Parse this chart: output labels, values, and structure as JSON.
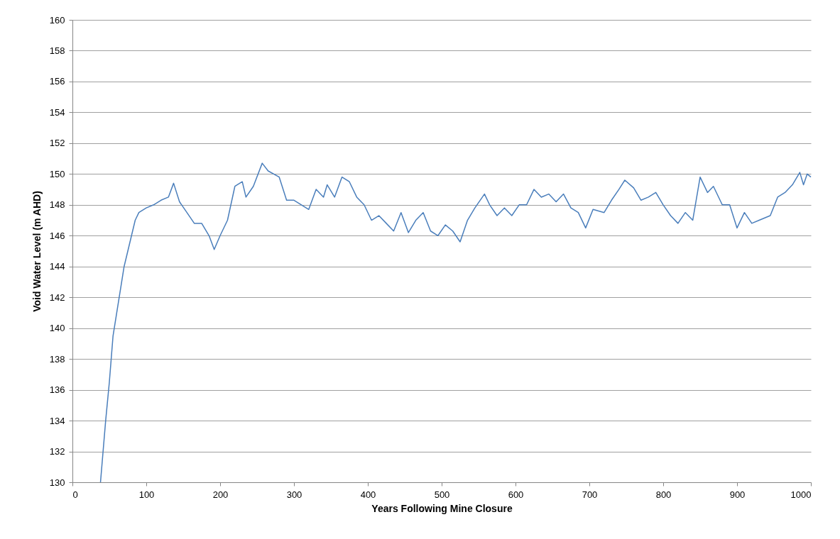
{
  "chart_data": {
    "type": "line",
    "xlabel": "Years Following Mine Closure",
    "ylabel": "Void Water Level (m AHD)",
    "xlim": [
      0,
      1000
    ],
    "xticks": [
      0,
      100,
      200,
      300,
      400,
      500,
      600,
      700,
      800,
      900,
      1000
    ],
    "ylim": [
      130,
      160
    ],
    "yticks": [
      130,
      132,
      134,
      136,
      138,
      140,
      142,
      144,
      146,
      148,
      150,
      152,
      154,
      156,
      158,
      160
    ],
    "grid": "y",
    "marker": "none",
    "line_style": "solid",
    "series": [
      {
        "color": "#4a7ebb",
        "x": [
          38,
          45,
          50,
          55,
          60,
          65,
          70,
          75,
          80,
          85,
          90,
          100,
          110,
          120,
          130,
          137,
          145,
          155,
          165,
          175,
          185,
          192,
          200,
          210,
          220,
          230,
          235,
          245,
          257,
          265,
          280,
          290,
          300,
          310,
          320,
          330,
          340,
          345,
          355,
          365,
          375,
          385,
          395,
          405,
          415,
          425,
          435,
          445,
          455,
          465,
          475,
          485,
          495,
          505,
          515,
          525,
          535,
          545,
          558,
          565,
          575,
          585,
          595,
          605,
          615,
          625,
          635,
          645,
          655,
          665,
          675,
          685,
          695,
          705,
          720,
          730,
          740,
          748,
          760,
          770,
          780,
          790,
          800,
          810,
          820,
          830,
          840,
          850,
          860,
          868,
          880,
          890,
          900,
          910,
          920,
          930,
          945,
          955,
          965,
          975,
          985,
          990,
          995,
          1000
        ],
        "values": [
          130,
          134,
          136.5,
          139.5,
          141,
          142.5,
          144,
          145,
          146,
          147,
          147.5,
          147.8,
          148,
          148.3,
          148.5,
          149.4,
          148.2,
          147.5,
          146.8,
          146.8,
          146,
          145.1,
          146,
          147,
          149.2,
          149.5,
          148.5,
          149.2,
          150.7,
          150.2,
          149.8,
          148.3,
          148.3,
          148,
          147.7,
          149,
          148.5,
          149.3,
          148.5,
          149.8,
          149.5,
          148.5,
          148,
          147,
          147.3,
          146.8,
          146.3,
          147.5,
          146.2,
          147,
          147.5,
          146.3,
          146,
          146.7,
          146.3,
          145.6,
          147,
          147.8,
          148.7,
          148,
          147.3,
          147.8,
          147.3,
          148,
          148,
          149,
          148.5,
          148.7,
          148.2,
          148.7,
          147.8,
          147.5,
          146.5,
          147.7,
          147.5,
          148.3,
          149,
          149.6,
          149.1,
          148.3,
          148.5,
          148.8,
          148,
          147.3,
          146.8,
          147.5,
          147,
          149.8,
          148.8,
          149.2,
          148,
          148,
          146.5,
          147.5,
          146.8,
          147,
          147.3,
          148.5,
          148.8,
          149.3,
          150.1,
          149.3,
          150,
          149.8
        ]
      }
    ]
  }
}
